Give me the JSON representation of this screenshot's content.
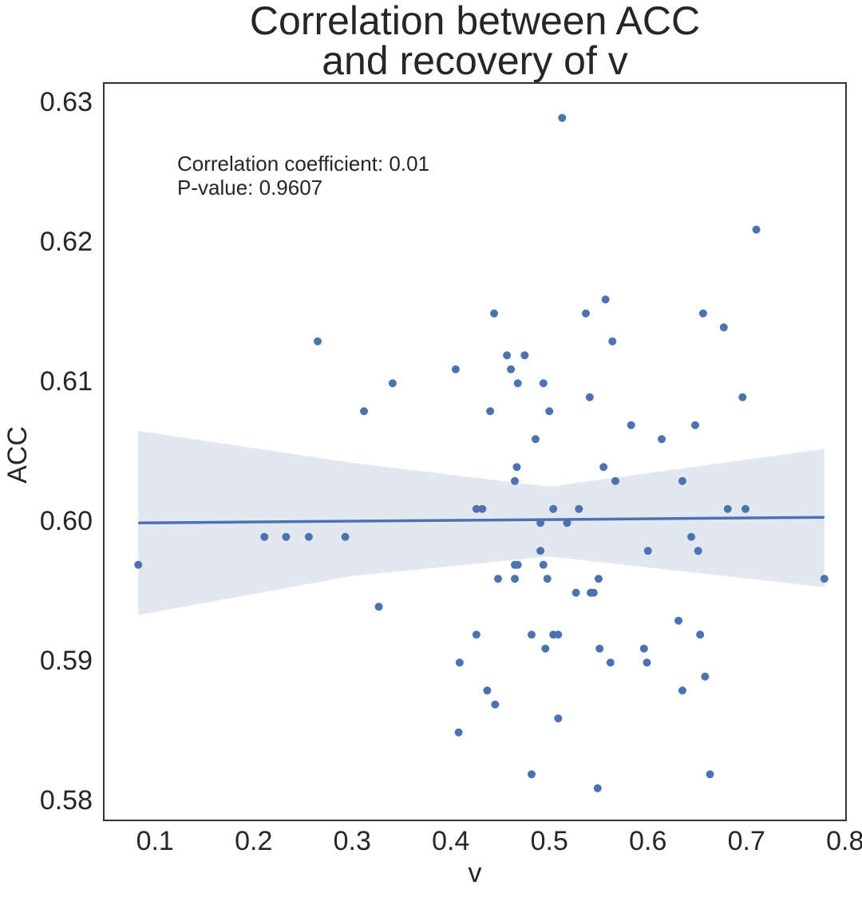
{
  "chart_data": {
    "type": "scatter",
    "title": [
      "Correlation between ACC",
      "and recovery of v"
    ],
    "xlabel": "v",
    "ylabel": "ACC",
    "annotations": [
      "Correlation coefficient: 0.01",
      "P-value: 0.9607"
    ],
    "color": "#4c72b0",
    "grid": false,
    "xlim": [
      0.048,
      0.801
    ],
    "ylim": [
      0.5787,
      0.6315
    ],
    "xticks": [
      0.1,
      0.2,
      0.3,
      0.4,
      0.5,
      0.6,
      0.7,
      0.8
    ],
    "yticks": [
      0.58,
      0.59,
      {
        "value": 0.6,
        "label": "0.60"
      },
      0.61,
      0.62,
      0.63
    ],
    "x": [
      0.083,
      0.211,
      0.233,
      0.256,
      0.293,
      0.265,
      0.312,
      0.341,
      0.327,
      0.405,
      0.409,
      0.408,
      0.426,
      0.432,
      0.426,
      0.437,
      0.44,
      0.444,
      0.445,
      0.448,
      0.457,
      0.461,
      0.465,
      0.468,
      0.465,
      0.465,
      0.467,
      0.468,
      0.475,
      0.482,
      0.482,
      0.486,
      0.491,
      0.491,
      0.494,
      0.494,
      0.496,
      0.498,
      0.5,
      0.504,
      0.504,
      0.509,
      0.509,
      0.513,
      0.518,
      0.527,
      0.53,
      0.537,
      0.541,
      0.542,
      0.545,
      0.549,
      0.55,
      0.551,
      0.555,
      0.557,
      0.562,
      0.564,
      0.567,
      0.583,
      0.596,
      0.6,
      0.599,
      0.614,
      0.631,
      0.635,
      0.635,
      0.644,
      0.648,
      0.651,
      0.653,
      0.656,
      0.658,
      0.663,
      0.677,
      0.681,
      0.696,
      0.699,
      0.71,
      0.779
    ],
    "values": [
      0.597,
      0.599,
      0.599,
      0.599,
      0.599,
      0.613,
      0.608,
      0.61,
      0.594,
      0.611,
      0.59,
      0.585,
      0.601,
      0.601,
      0.592,
      0.588,
      0.608,
      0.615,
      0.587,
      0.596,
      0.612,
      0.611,
      0.597,
      0.597,
      0.596,
      0.603,
      0.604,
      0.61,
      0.612,
      0.592,
      0.582,
      0.606,
      0.6,
      0.598,
      0.597,
      0.61,
      0.591,
      0.596,
      0.608,
      0.601,
      0.592,
      0.592,
      0.586,
      0.629,
      0.6,
      0.595,
      0.601,
      0.615,
      0.609,
      0.595,
      0.595,
      0.581,
      0.596,
      0.591,
      0.604,
      0.616,
      0.59,
      0.613,
      0.603,
      0.607,
      0.591,
      0.598,
      0.59,
      0.606,
      0.593,
      0.603,
      0.588,
      0.599,
      0.607,
      0.598,
      0.592,
      0.615,
      0.589,
      0.582,
      0.614,
      0.601,
      0.609,
      0.601,
      0.621,
      0.596
    ],
    "regression": {
      "x": [
        0.083,
        0.779
      ],
      "values": [
        0.6,
        0.6004
      ]
    },
    "ci_band": {
      "x": [
        0.083,
        0.3,
        0.5,
        0.779
      ],
      "upper": [
        0.6066,
        0.6043,
        0.6026,
        0.6053
      ],
      "lower": [
        0.5934,
        0.5962,
        0.5976,
        0.5954
      ]
    }
  }
}
